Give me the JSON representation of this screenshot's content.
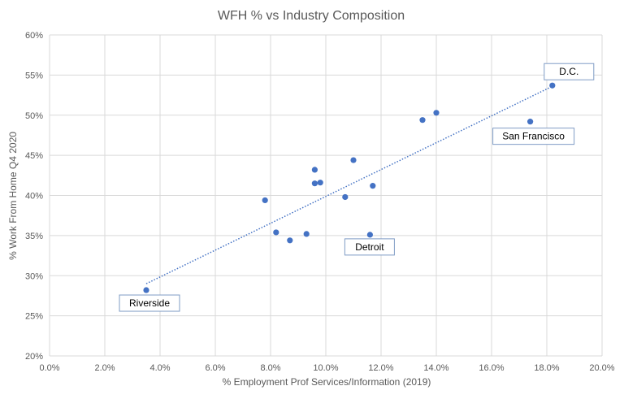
{
  "colors": {
    "point": "#4472C4",
    "trendline": "#4472C4",
    "grid": "#D9D9D9",
    "text": "#595959",
    "callout_border": "#7F9CC5"
  },
  "chart_data": {
    "type": "scatter",
    "title": "WFH % vs Industry Composition",
    "xlabel": "% Employment Prof Services/Information (2019)",
    "ylabel": "% Work From Home Q4 2020",
    "xlim": [
      0,
      20
    ],
    "ylim": [
      20,
      60
    ],
    "x_ticks": [
      0,
      2,
      4,
      6,
      8,
      10,
      12,
      14,
      16,
      18,
      20
    ],
    "x_tick_labels": [
      "0.0%",
      "2.0%",
      "4.0%",
      "6.0%",
      "8.0%",
      "10.0%",
      "12.0%",
      "14.0%",
      "16.0%",
      "18.0%",
      "20.0%"
    ],
    "y_ticks": [
      20,
      25,
      30,
      35,
      40,
      45,
      50,
      55,
      60
    ],
    "y_tick_labels": [
      "20%",
      "25%",
      "30%",
      "35%",
      "40%",
      "45%",
      "50%",
      "55%",
      "60%"
    ],
    "grid": true,
    "points": [
      {
        "x": 3.5,
        "y": 28.2
      },
      {
        "x": 7.8,
        "y": 39.4
      },
      {
        "x": 8.2,
        "y": 35.4
      },
      {
        "x": 8.7,
        "y": 34.4
      },
      {
        "x": 9.3,
        "y": 35.2
      },
      {
        "x": 9.6,
        "y": 43.2
      },
      {
        "x": 9.6,
        "y": 41.5
      },
      {
        "x": 9.8,
        "y": 41.6
      },
      {
        "x": 10.7,
        "y": 39.8
      },
      {
        "x": 11.0,
        "y": 44.4
      },
      {
        "x": 11.6,
        "y": 35.1
      },
      {
        "x": 11.7,
        "y": 41.2
      },
      {
        "x": 13.5,
        "y": 49.4
      },
      {
        "x": 14.0,
        "y": 50.3
      },
      {
        "x": 17.4,
        "y": 49.2
      },
      {
        "x": 18.2,
        "y": 53.7
      }
    ],
    "trendline": {
      "style": "dotted",
      "x_start": 3.5,
      "y_start": 29.0,
      "x_end": 18.2,
      "y_end": 53.6
    },
    "annotations": [
      {
        "label": "D.C.",
        "x": 18.2,
        "y": 53.7
      },
      {
        "label": "San Francisco",
        "x": 17.4,
        "y": 49.2
      },
      {
        "label": "Detroit",
        "x": 11.6,
        "y": 35.1
      },
      {
        "label": "Riverside",
        "x": 3.5,
        "y": 28.2
      }
    ]
  }
}
